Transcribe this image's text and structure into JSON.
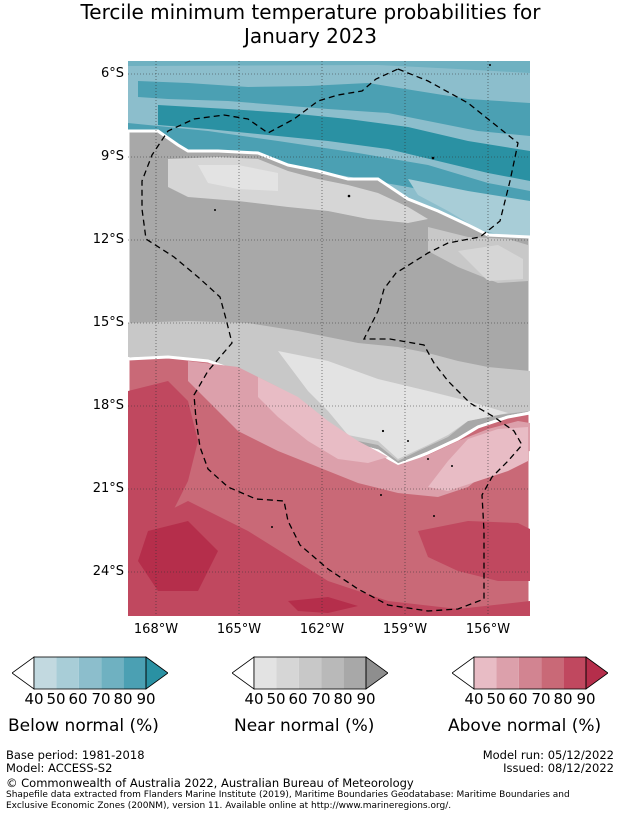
{
  "title": {
    "line1": "Tercile minimum temperature probabilities for",
    "line2": "January 2023"
  },
  "axes": {
    "lat_labels": [
      "6°S",
      "9°S",
      "12°S",
      "15°S",
      "18°S",
      "21°S",
      "24°S"
    ],
    "lon_labels": [
      "168°W",
      "165°W",
      "162°W",
      "159°W",
      "156°W"
    ]
  },
  "map": {
    "region": "Cook Islands",
    "lat_range": [
      -25.5,
      -5.5
    ],
    "lon_range": [
      -169,
      -154.5
    ],
    "features": [
      "below-normal zone (north)",
      "near-normal zone (centre)",
      "above-normal zone (south)",
      "EEZ boundary (dashed)"
    ]
  },
  "colorbars": [
    {
      "name": "Below normal (%)",
      "ticks": [
        "40",
        "50",
        "60",
        "70",
        "80",
        "90"
      ],
      "colors": [
        "#ffffff",
        "#c2d9e0",
        "#a8cdd7",
        "#8cbecc",
        "#6fb1c1",
        "#4ba0b3",
        "#2a91a3"
      ]
    },
    {
      "name": "Near normal (%)",
      "ticks": [
        "40",
        "50",
        "60",
        "70",
        "80",
        "90"
      ],
      "colors": [
        "#ffffff",
        "#e3e3e3",
        "#d6d6d6",
        "#c8c8c8",
        "#b9b9b9",
        "#a8a8a8",
        "#8e8e8e"
      ]
    },
    {
      "name": "Above normal (%)",
      "ticks": [
        "40",
        "50",
        "60",
        "70",
        "80",
        "90"
      ],
      "colors": [
        "#ffffff",
        "#e8bcc5",
        "#dca0ab",
        "#d28491",
        "#c96977",
        "#c0485f",
        "#b52e4b"
      ]
    }
  ],
  "footer": {
    "base_period": "Base period: 1981-2018",
    "model": "Model: ACCESS-S2",
    "model_run": "Model run: 05/12/2022",
    "issued": "Issued: 08/12/2022",
    "copyright": "© Commonwealth of Australia 2022, Australian Bureau of Meteorology",
    "shapefile_line1": "Shapefile data extracted from Flanders Marine Institute (2019), Maritime Boundaries Geodatabase: Maritime Boundaries and",
    "shapefile_line2": "Exclusive Economic Zones (200NM), version 11. Available online at http://www.marineregions.org/."
  }
}
